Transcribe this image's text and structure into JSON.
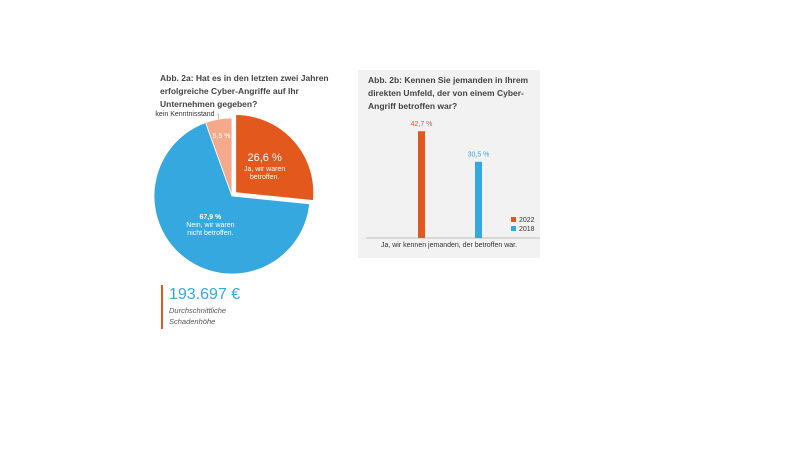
{
  "chart_data": [
    {
      "type": "pie",
      "title": "Abb. 2a: Hat es in den letzten zwei Jahren erfolgreiche Cyber-Angriffe auf Ihr Unternehmen gegeben?",
      "categories": [
        "Ja, wir waren betroffen.",
        "Nein, wir waren nicht betroffen.",
        "kein Kenntnisstand"
      ],
      "values": [
        26.6,
        67.9,
        5.5
      ],
      "value_labels": [
        "26,6 %",
        "67,9 %",
        "5,5 %"
      ],
      "colors": [
        "#e3581d",
        "#35a8e0",
        "#f3a98a"
      ],
      "kpi": {
        "text": "193.697 €",
        "caption": "Durchschnittliche Schadenhöhe"
      }
    },
    {
      "type": "bar",
      "title": "Abb. 2b: Kennen Sie jemanden in Ihrem direkten Umfeld, der von einem Cyber-Angriff betroffen war?",
      "categories": [
        "Ja, wir kennen jemanden, der betroffen war."
      ],
      "series": [
        {
          "name": "2022",
          "color": "#e3581d",
          "values": [
            42.7
          ],
          "value_labels": [
            "42,7 %"
          ]
        },
        {
          "name": "2018",
          "color": "#35a8e0",
          "values": [
            30.5
          ],
          "value_labels": [
            "30,5 %"
          ]
        }
      ],
      "ylim": [
        0,
        50
      ]
    }
  ]
}
